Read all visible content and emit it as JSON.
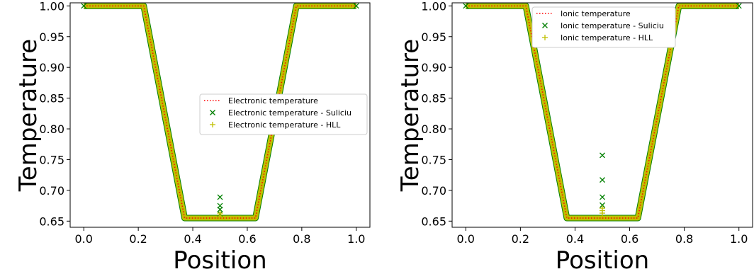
{
  "chart_data": [
    {
      "type": "line",
      "title": "",
      "xlabel": "Position",
      "ylabel": "Temperature",
      "xlim": [
        -0.05,
        1.05
      ],
      "ylim": [
        0.64,
        1.005
      ],
      "xticks": [
        0.0,
        0.2,
        0.4,
        0.6,
        0.8,
        1.0
      ],
      "xtick_labels": [
        "0.0",
        "0.2",
        "0.4",
        "0.6",
        "0.8",
        "1.0"
      ],
      "yticks": [
        0.65,
        0.7,
        0.75,
        0.8,
        0.85,
        0.9,
        0.95,
        1.0
      ],
      "ytick_labels": [
        "0.65",
        "0.70",
        "0.75",
        "0.80",
        "0.85",
        "0.90",
        "0.95",
        "1.00"
      ],
      "grid": false,
      "legend_position": "center-right",
      "profile": {
        "x": [
          0.0,
          0.22,
          0.37,
          0.5,
          0.63,
          0.78,
          1.0
        ],
        "y": [
          1.0,
          1.0,
          0.655,
          0.655,
          0.655,
          1.0,
          1.0
        ]
      },
      "series": [
        {
          "name": "Electronic temperature",
          "style": "dotted-line",
          "color": "#ff0000"
        },
        {
          "name": "Electronic temperature - Suliciu",
          "style": "x-marker",
          "color": "#008000",
          "outliers": {
            "x": [
              0.5,
              0.5,
              0.5,
              0.5
            ],
            "y": [
              0.689,
              0.675,
              0.669,
              0.662
            ]
          }
        },
        {
          "name": "Electronic temperature - HLL",
          "style": "plus-marker",
          "color": "#bfbf00",
          "outliers": {
            "x": [
              0.5,
              0.5
            ],
            "y": [
              0.663,
              0.66
            ]
          }
        }
      ]
    },
    {
      "type": "line",
      "title": "",
      "xlabel": "Position",
      "ylabel": "Temperature",
      "xlim": [
        -0.05,
        1.05
      ],
      "ylim": [
        0.64,
        1.005
      ],
      "xticks": [
        0.0,
        0.2,
        0.4,
        0.6,
        0.8,
        1.0
      ],
      "xtick_labels": [
        "0.0",
        "0.2",
        "0.4",
        "0.6",
        "0.8",
        "1.0"
      ],
      "yticks": [
        0.65,
        0.7,
        0.75,
        0.8,
        0.85,
        0.9,
        0.95,
        1.0
      ],
      "ytick_labels": [
        "0.65",
        "0.70",
        "0.75",
        "0.80",
        "0.85",
        "0.90",
        "0.95",
        "1.00"
      ],
      "grid": false,
      "legend_position": "top-center",
      "profile": {
        "x": [
          0.0,
          0.22,
          0.37,
          0.5,
          0.63,
          0.78,
          1.0
        ],
        "y": [
          1.0,
          1.0,
          0.655,
          0.655,
          0.655,
          1.0,
          1.0
        ]
      },
      "series": [
        {
          "name": "Ionic temperature",
          "style": "dotted-line",
          "color": "#ff0000"
        },
        {
          "name": "Ionic temperature - Suliciu",
          "style": "x-marker",
          "color": "#008000",
          "outliers": {
            "x": [
              0.5,
              0.5,
              0.5,
              0.5
            ],
            "y": [
              0.757,
              0.717,
              0.689,
              0.676
            ]
          }
        },
        {
          "name": "Ionic temperature - HLL",
          "style": "plus-marker",
          "color": "#bfbf00",
          "outliers": {
            "x": [
              0.5,
              0.5,
              0.5
            ],
            "y": [
              0.671,
              0.667,
              0.663
            ]
          }
        }
      ]
    }
  ]
}
